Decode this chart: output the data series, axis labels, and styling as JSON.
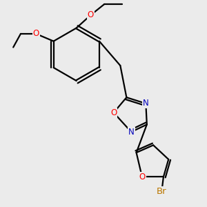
{
  "bg_color": "#ebebeb",
  "bond_color": "#000000",
  "bond_width": 1.6,
  "atom_colors": {
    "O": "#ff0000",
    "N": "#0000bb",
    "Br": "#bb7700",
    "C": "#000000"
  },
  "font_size_atom": 8.5,
  "fig_size": [
    3.0,
    3.0
  ],
  "dpi": 100
}
